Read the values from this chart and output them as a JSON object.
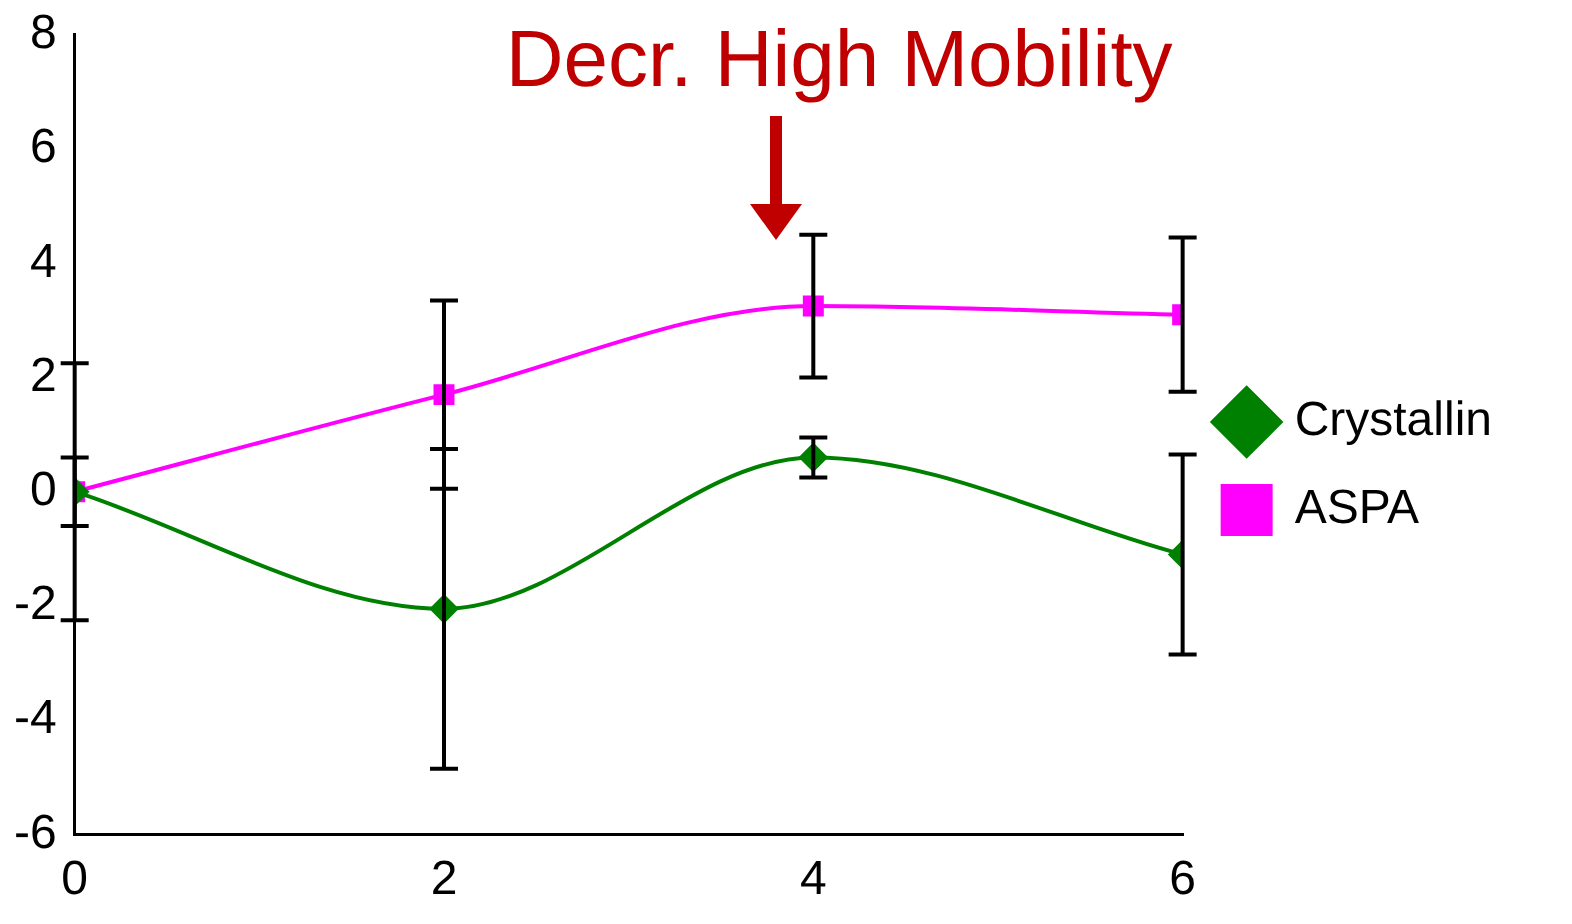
{
  "chart_data": {
    "type": "line",
    "x": [
      0,
      2,
      4,
      6
    ],
    "series": [
      {
        "name": "Crystallin",
        "color": "#008000",
        "marker": "diamond",
        "values": [
          0,
          -2.05,
          0.6,
          -1.1
        ],
        "errors": [
          0.6,
          2.8,
          0.35,
          1.75
        ]
      },
      {
        "name": "ASPA",
        "color": "#ff00ff",
        "marker": "square",
        "values": [
          0,
          1.7,
          3.25,
          3.1
        ],
        "errors": [
          2.25,
          1.65,
          1.25,
          1.35
        ]
      }
    ],
    "xlim": [
      0,
      6
    ],
    "xticks": [
      0,
      2,
      4,
      6
    ],
    "ylim": [
      -6,
      8
    ],
    "yticks": [
      -6,
      -4,
      -2,
      0,
      2,
      4,
      6,
      8
    ],
    "grid": false,
    "legend": "right",
    "line_style": "solid",
    "annotations": [
      "Decr. High Mobility"
    ]
  }
}
